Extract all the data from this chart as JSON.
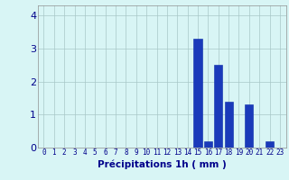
{
  "hours": [
    0,
    1,
    2,
    3,
    4,
    5,
    6,
    7,
    8,
    9,
    10,
    11,
    12,
    13,
    14,
    15,
    16,
    17,
    18,
    19,
    20,
    21,
    22,
    23
  ],
  "values": [
    0,
    0,
    0,
    0,
    0,
    0,
    0,
    0,
    0,
    0,
    0,
    0,
    0,
    0,
    0,
    3.3,
    0.2,
    2.5,
    1.4,
    0,
    1.3,
    0,
    0.2,
    0
  ],
  "bar_color": "#1a3aba",
  "bar_edge_color": "#0a2aaa",
  "background_color": "#d8f5f5",
  "grid_color": "#a8c8c8",
  "xlabel": "Précipitations 1h ( mm )",
  "xlabel_color": "#00008b",
  "xlabel_fontsize": 7.5,
  "tick_color": "#00008b",
  "ytick_fontsize": 8,
  "xtick_fontsize": 5.5,
  "ylim": [
    0,
    4.3
  ],
  "yticks": [
    0,
    1,
    2,
    3,
    4
  ],
  "spine_color": "#909090"
}
